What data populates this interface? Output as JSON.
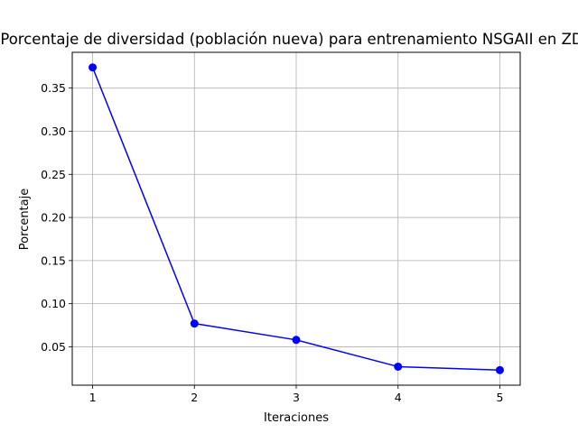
{
  "chart_data": {
    "type": "line",
    "title": "Porcentaje de diversidad (población nueva) para entrenamiento NSGAII en ZDT",
    "xlabel": "Iteraciones",
    "ylabel": "Porcentaje",
    "x": [
      1,
      2,
      3,
      4,
      5
    ],
    "series": [
      {
        "values": [
          0.374,
          0.077,
          0.058,
          0.027,
          0.023
        ],
        "color": "#0000ff",
        "marker": "circle"
      }
    ],
    "xticks": [
      "1",
      "2",
      "3",
      "4",
      "5"
    ],
    "yticks": [
      "0.05",
      "0.10",
      "0.15",
      "0.20",
      "0.25",
      "0.30",
      "0.35"
    ],
    "ytick_values": [
      0.05,
      0.1,
      0.15,
      0.2,
      0.25,
      0.3,
      0.35
    ],
    "xlim": [
      0.8,
      5.2
    ],
    "ylim": [
      0.0055,
      0.3915
    ],
    "grid": true,
    "legend": "none"
  }
}
